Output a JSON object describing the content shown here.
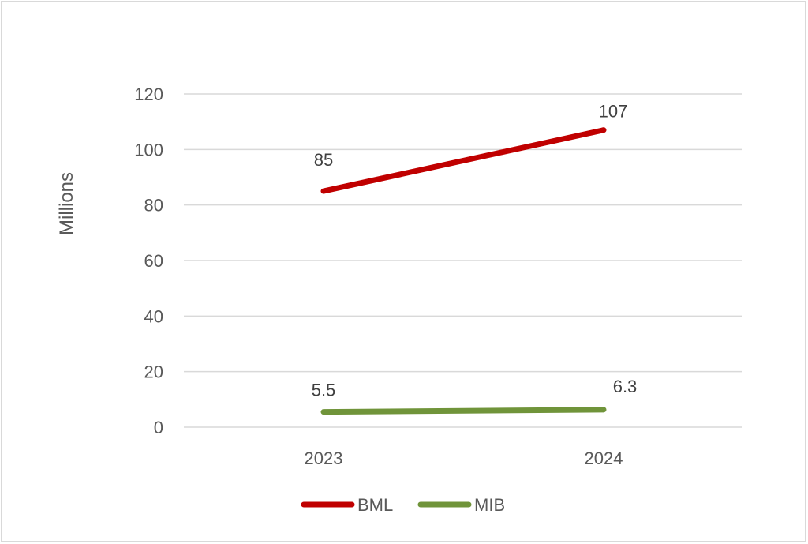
{
  "chart_data": {
    "type": "line",
    "categories": [
      "2023",
      "2024"
    ],
    "series": [
      {
        "name": "BML",
        "values": [
          85,
          107
        ],
        "labels": [
          "85",
          "107"
        ],
        "color": "#c00000"
      },
      {
        "name": "MIB",
        "values": [
          5.5,
          6.3
        ],
        "labels": [
          "5.5",
          "6.3"
        ],
        "color": "#70943a"
      }
    ],
    "ylabel": "Millions",
    "ylim": [
      0,
      120
    ],
    "yticks": [
      0,
      20,
      40,
      60,
      80,
      100,
      120
    ],
    "grid": true,
    "legend": "bottom"
  }
}
